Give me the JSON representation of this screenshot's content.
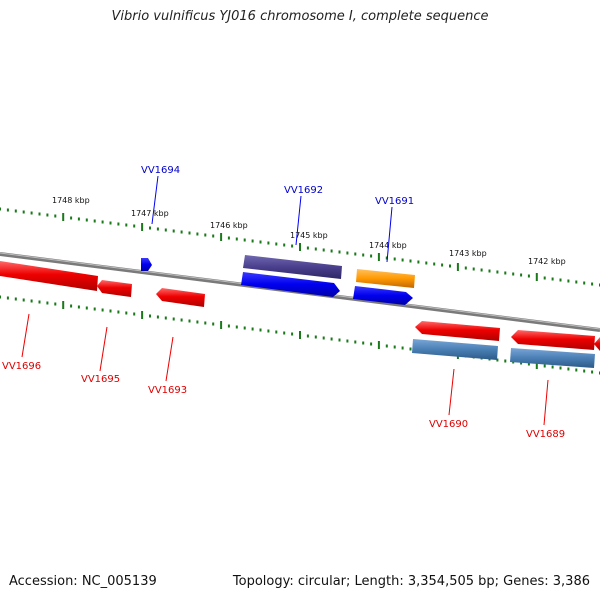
{
  "title": "Vibrio vulnificus YJ016 chromosome I, complete sequence",
  "footer": {
    "accession": "Accession: NC_005139",
    "summary": "Topology: circular; Length: 3,354,505 bp; Genes: 3,386"
  },
  "scale_labels": [
    "1748 kbp",
    "1747 kbp",
    "1746 kbp",
    "1745 kbp",
    "1744 kbp",
    "1743 kbp",
    "1742 kbp"
  ],
  "genes_top": [
    "VV1694",
    "VV1692",
    "VV1691"
  ],
  "genes_bottom": [
    "VV1696",
    "VV1695",
    "VV1693",
    "VV1690",
    "VV1689"
  ],
  "colors": {
    "forward_gene": "#0000ee",
    "reverse_gene": "#ee0000",
    "forward_feature": "#4a3f8c",
    "orange_feature": "#ff9900",
    "reverse_feature": "#4a7fb5",
    "tick": "#1a7a1a",
    "backbone": "#888888"
  }
}
